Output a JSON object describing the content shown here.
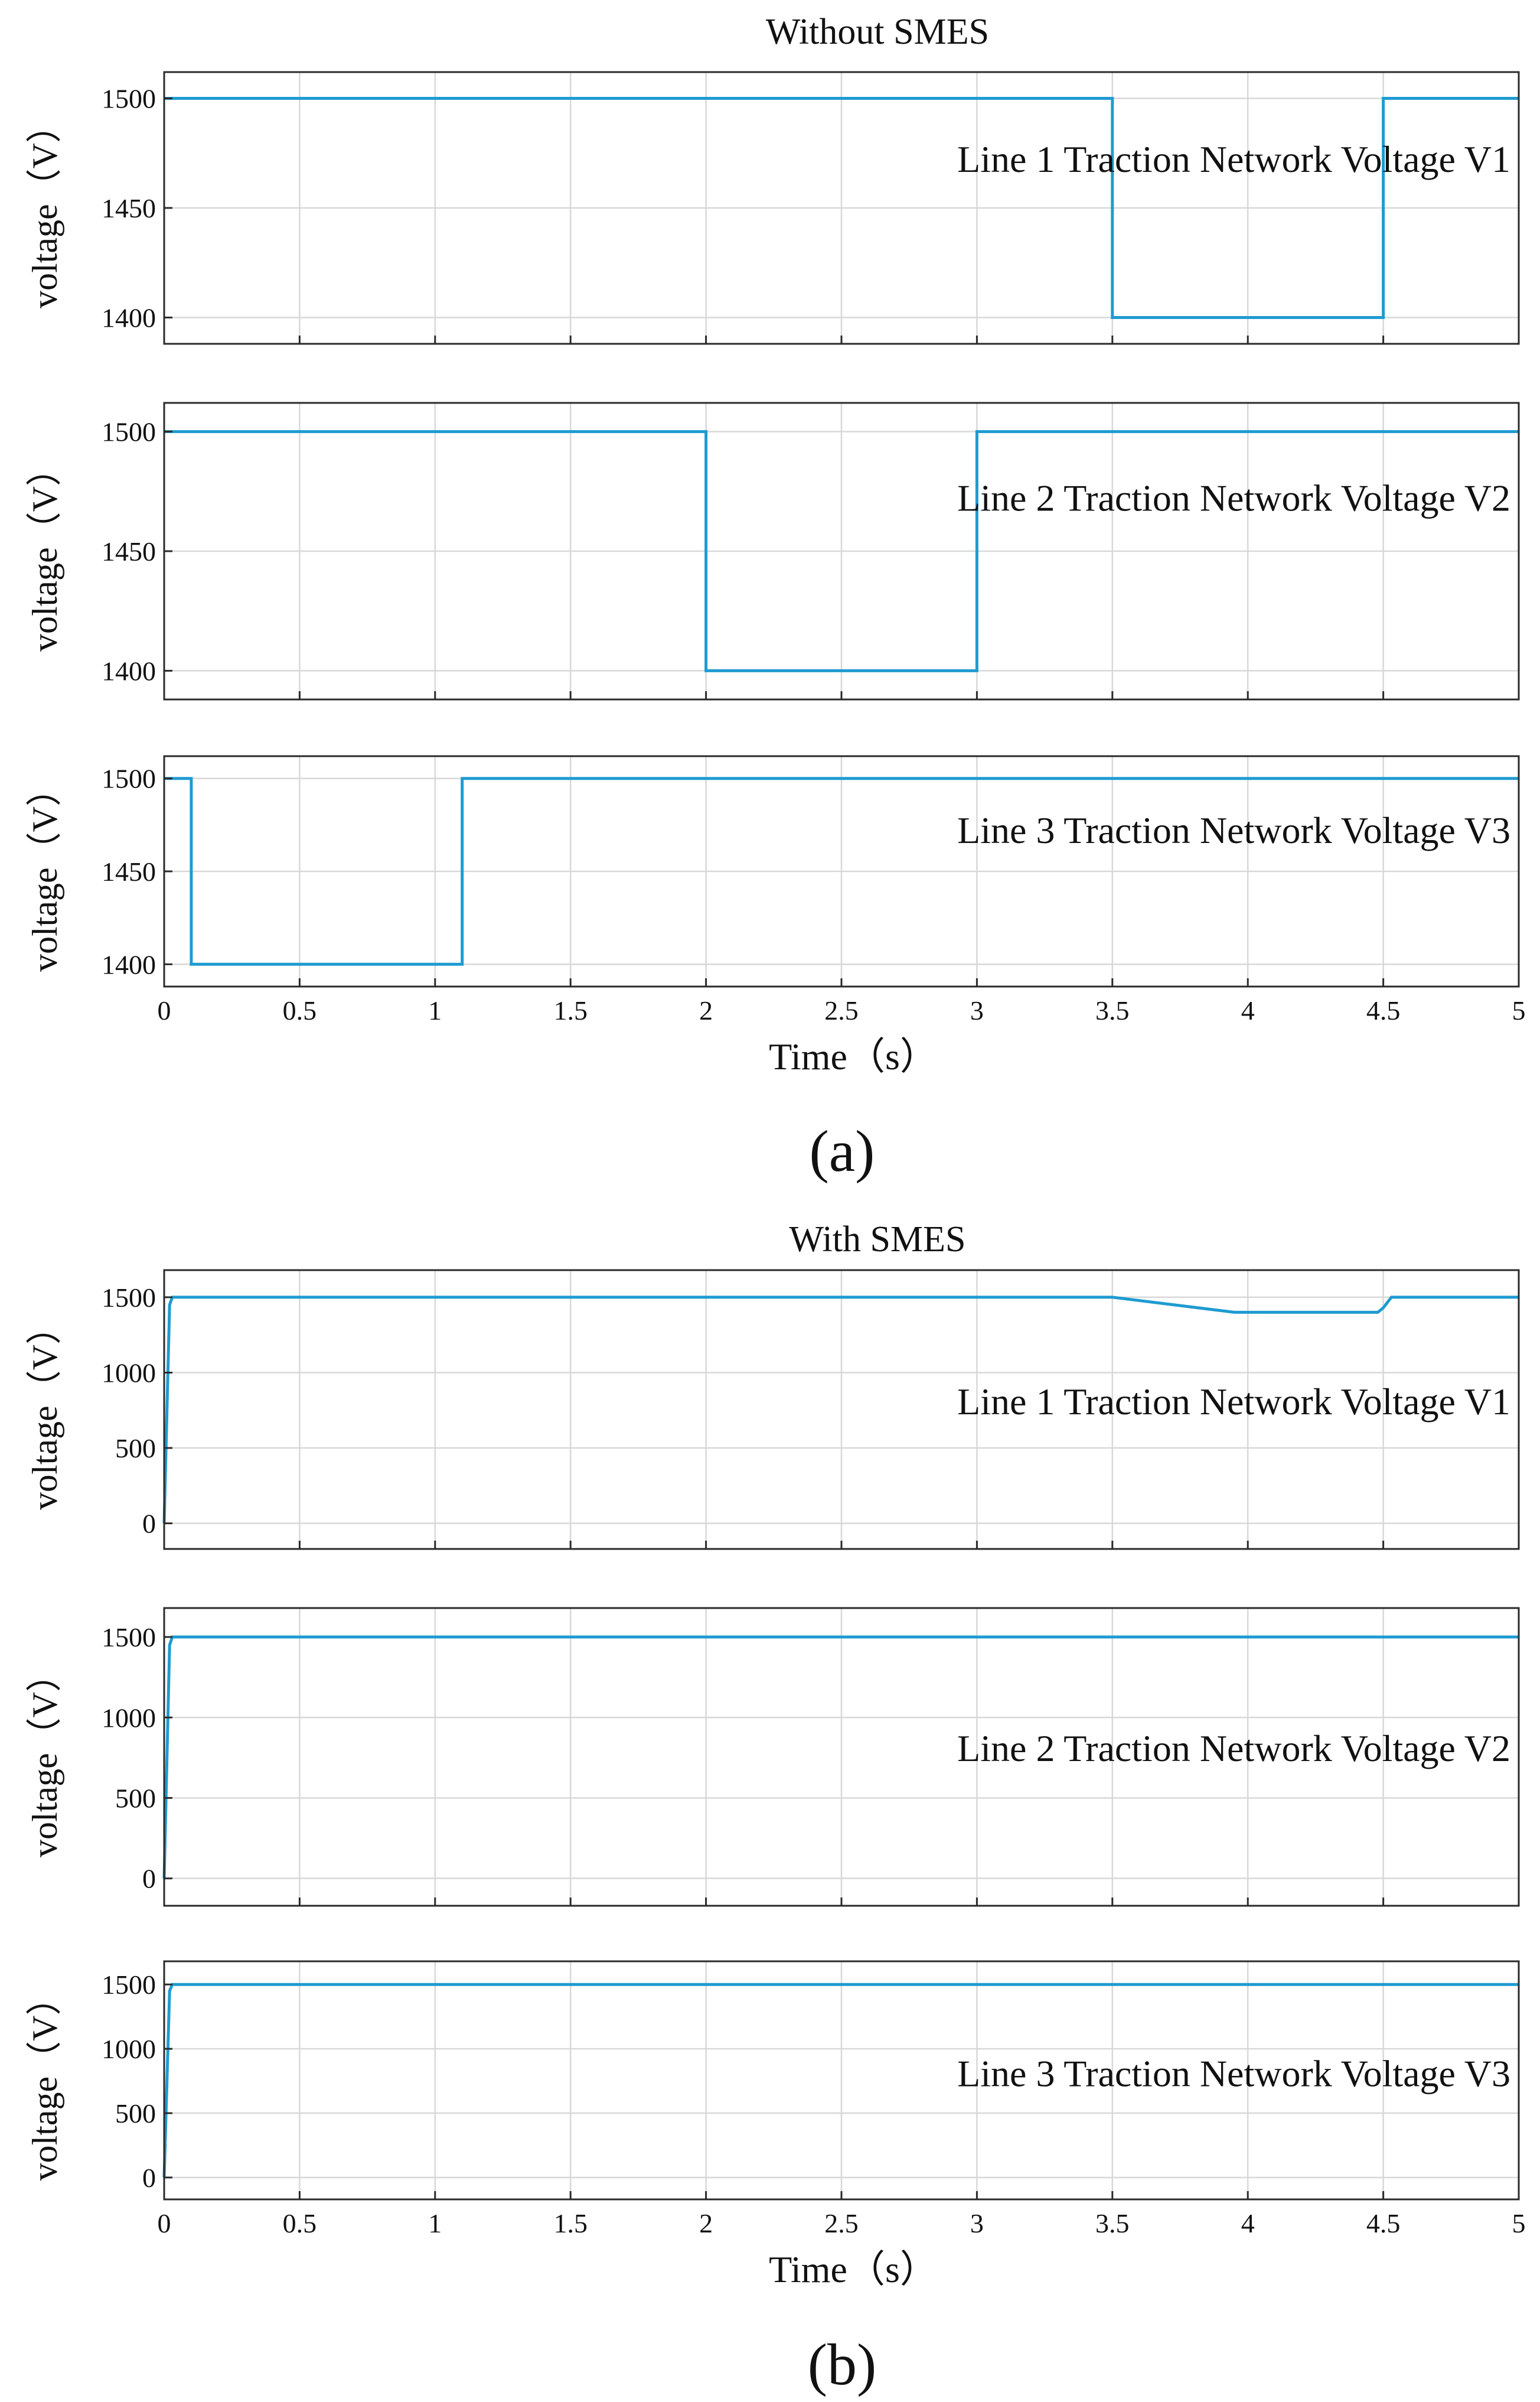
{
  "colors": {
    "series": "#1f9bd1"
  },
  "figure_a": {
    "title": "Without SMES",
    "panel_letter": "(a)"
  },
  "figure_b": {
    "title": "With SMES",
    "panel_letter": "(b)"
  },
  "chart_data": [
    {
      "type": "line",
      "figure": "a",
      "title": "Without SMES",
      "xlabel": "",
      "ylabel": "voltage（V）",
      "xlim": [
        0,
        5
      ],
      "ylim": [
        1388,
        1512
      ],
      "yticks": [
        1400,
        1450,
        1500
      ],
      "xticks": [
        0,
        0.5,
        1,
        1.5,
        2,
        2.5,
        3,
        3.5,
        4,
        4.5,
        5
      ],
      "show_xtick_labels": false,
      "grid": true,
      "legend": "top-right",
      "series": [
        {
          "name": "Line 1 Traction Network Voltage V1",
          "x": [
            0,
            3.5,
            3.5,
            4.5,
            4.5,
            5
          ],
          "y": [
            1500,
            1500,
            1400,
            1400,
            1500,
            1500
          ]
        }
      ]
    },
    {
      "type": "line",
      "figure": "a",
      "xlabel": "",
      "ylabel": "voltage（V）",
      "xlim": [
        0,
        5
      ],
      "ylim": [
        1388,
        1512
      ],
      "yticks": [
        1400,
        1450,
        1500
      ],
      "xticks": [
        0,
        0.5,
        1,
        1.5,
        2,
        2.5,
        3,
        3.5,
        4,
        4.5,
        5
      ],
      "show_xtick_labels": false,
      "grid": true,
      "legend": "top-right",
      "series": [
        {
          "name": "Line 2 Traction Network Voltage V2",
          "x": [
            0,
            2,
            2,
            3,
            3,
            5
          ],
          "y": [
            1500,
            1500,
            1400,
            1400,
            1500,
            1500
          ]
        }
      ]
    },
    {
      "type": "line",
      "figure": "a",
      "xlabel": "Time（s）",
      "ylabel": "voltage（V）",
      "xlim": [
        0,
        5
      ],
      "ylim": [
        1388,
        1512
      ],
      "yticks": [
        1400,
        1450,
        1500
      ],
      "xticks": [
        0,
        0.5,
        1,
        1.5,
        2,
        2.5,
        3,
        3.5,
        4,
        4.5,
        5
      ],
      "xticklabels": [
        "0",
        "0.5",
        "1",
        "1.5",
        "2",
        "2.5",
        "3",
        "3.5",
        "4",
        "4.5",
        "5"
      ],
      "show_xtick_labels": true,
      "grid": true,
      "legend": "right",
      "series": [
        {
          "name": "Line 3 Traction Network Voltage V3",
          "x": [
            0,
            0.1,
            0.1,
            1.1,
            1.1,
            5
          ],
          "y": [
            1500,
            1500,
            1400,
            1400,
            1500,
            1500
          ]
        }
      ]
    },
    {
      "type": "line",
      "figure": "b",
      "title": "With SMES",
      "xlabel": "",
      "ylabel": "voltage（V）",
      "xlim": [
        0,
        5
      ],
      "ylim": [
        -170,
        1680
      ],
      "yticks": [
        0,
        500,
        1000,
        1500
      ],
      "xticks": [
        0,
        0.5,
        1,
        1.5,
        2,
        2.5,
        3,
        3.5,
        4,
        4.5,
        5
      ],
      "show_xtick_labels": false,
      "grid": true,
      "legend": "right",
      "series": [
        {
          "name": "Line 1 Traction Network Voltage V1",
          "x": [
            0,
            0.02,
            0.03,
            3.5,
            3.95,
            4.48,
            4.5,
            4.53,
            5
          ],
          "y": [
            0,
            1450,
            1500,
            1500,
            1400,
            1400,
            1430,
            1500,
            1500
          ]
        }
      ]
    },
    {
      "type": "line",
      "figure": "b",
      "xlabel": "",
      "ylabel": "voltage（V）",
      "xlim": [
        0,
        5
      ],
      "ylim": [
        -170,
        1680
      ],
      "yticks": [
        0,
        500,
        1000,
        1500
      ],
      "xticks": [
        0,
        0.5,
        1,
        1.5,
        2,
        2.5,
        3,
        3.5,
        4,
        4.5,
        5
      ],
      "show_xtick_labels": false,
      "grid": true,
      "legend": "right",
      "series": [
        {
          "name": "Line 2 Traction Network Voltage V2",
          "x": [
            0,
            0.02,
            0.03,
            5
          ],
          "y": [
            0,
            1450,
            1500,
            1500
          ]
        }
      ]
    },
    {
      "type": "line",
      "figure": "b",
      "xlabel": "Time（s）",
      "ylabel": "voltage（V）",
      "xlim": [
        0,
        5
      ],
      "ylim": [
        -170,
        1680
      ],
      "yticks": [
        0,
        500,
        1000,
        1500
      ],
      "xticks": [
        0,
        0.5,
        1,
        1.5,
        2,
        2.5,
        3,
        3.5,
        4,
        4.5,
        5
      ],
      "xticklabels": [
        "0",
        "0.5",
        "1",
        "1.5",
        "2",
        "2.5",
        "3",
        "3.5",
        "4",
        "4.5",
        "5"
      ],
      "show_xtick_labels": true,
      "grid": true,
      "legend": "right",
      "series": [
        {
          "name": "Line 3 Traction Network Voltage V3",
          "x": [
            0,
            0.02,
            0.03,
            5
          ],
          "y": [
            0,
            1450,
            1500,
            1500
          ]
        }
      ]
    }
  ]
}
